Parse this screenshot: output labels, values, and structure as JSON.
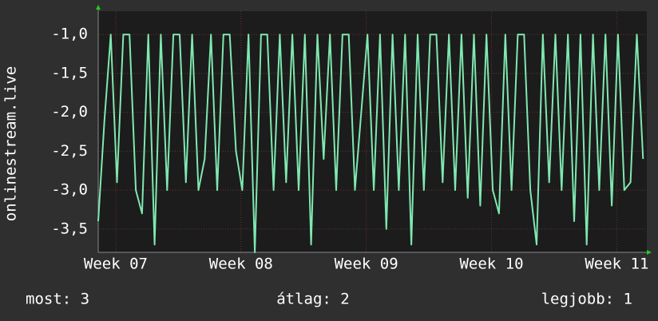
{
  "chart_data": {
    "type": "line",
    "y_label": "onlinestream.live",
    "x": [
      6.86,
      6.91,
      6.96,
      7.01,
      7.06,
      7.11,
      7.16,
      7.21,
      7.26,
      7.31,
      7.36,
      7.41,
      7.46,
      7.51,
      7.56,
      7.61,
      7.66,
      7.71,
      7.76,
      7.81,
      7.86,
      7.91,
      7.96,
      8.01,
      8.06,
      8.11,
      8.16,
      8.21,
      8.26,
      8.31,
      8.36,
      8.41,
      8.46,
      8.51,
      8.56,
      8.61,
      8.66,
      8.71,
      8.76,
      8.81,
      8.86,
      8.91,
      8.96,
      9.01,
      9.06,
      9.11,
      9.16,
      9.21,
      9.26,
      9.31,
      9.36,
      9.41,
      9.46,
      9.51,
      9.56,
      9.61,
      9.66,
      9.71,
      9.76,
      9.81,
      9.86,
      9.91,
      9.96,
      10.01,
      10.06,
      10.11,
      10.16,
      10.21,
      10.26,
      10.31,
      10.36,
      10.41,
      10.46,
      10.51,
      10.56,
      10.61,
      10.66,
      10.71,
      10.76,
      10.81,
      10.86,
      10.91,
      10.96,
      11.01,
      11.06,
      11.11,
      11.16,
      11.21
    ],
    "series": [
      {
        "name": "onlinestream.live",
        "color": "#7fe8b0",
        "values": [
          -3.4,
          -2.1,
          -1.0,
          -2.9,
          -1.0,
          -1.0,
          -3.0,
          -3.3,
          -1.0,
          -3.7,
          -1.0,
          -3.0,
          -1.0,
          -1.0,
          -2.9,
          -1.0,
          -3.0,
          -2.6,
          -1.0,
          -3.0,
          -1.0,
          -1.0,
          -2.5,
          -3.0,
          -1.0,
          -3.8,
          -1.0,
          -1.0,
          -3.0,
          -1.0,
          -2.9,
          -1.0,
          -3.0,
          -1.0,
          -3.7,
          -1.0,
          -2.6,
          -1.0,
          -3.0,
          -1.0,
          -1.0,
          -3.0,
          -2.0,
          -1.0,
          -3.0,
          -1.0,
          -3.5,
          -1.0,
          -3.0,
          -1.0,
          -3.7,
          -1.0,
          -3.0,
          -1.0,
          -1.0,
          -2.9,
          -1.0,
          -3.0,
          -1.0,
          -3.1,
          -1.0,
          -3.2,
          -1.0,
          -3.0,
          -3.3,
          -1.0,
          -3.0,
          -1.0,
          -1.0,
          -3.0,
          -3.7,
          -1.0,
          -2.9,
          -1.0,
          -3.0,
          -1.0,
          -3.4,
          -1.0,
          -3.7,
          -1.0,
          -3.0,
          -1.0,
          -3.2,
          -1.0,
          -3.0,
          -2.9,
          -1.0,
          -2.6
        ]
      }
    ],
    "xlim": [
      6.86,
      11.24
    ],
    "xticks": [
      {
        "value": 7,
        "label": "Week 07"
      },
      {
        "value": 8,
        "label": "Week 08"
      },
      {
        "value": 9,
        "label": "Week 09"
      },
      {
        "value": 10,
        "label": "Week 10"
      },
      {
        "value": 11,
        "label": "Week 11"
      }
    ],
    "ylim": [
      -3.8,
      -0.7
    ],
    "yticks": [
      {
        "value": -3.5,
        "label": "-3,5"
      },
      {
        "value": -3.0,
        "label": "-3,0"
      },
      {
        "value": -2.5,
        "label": "-2,5"
      },
      {
        "value": -2.0,
        "label": "-2,0"
      },
      {
        "value": -1.5,
        "label": "-1,5"
      },
      {
        "value": -1.0,
        "label": "-1,0"
      }
    ],
    "grid": true,
    "footer": {
      "current": "most: 3",
      "average": "átlag: 2",
      "best": "legjobb: 1"
    }
  }
}
